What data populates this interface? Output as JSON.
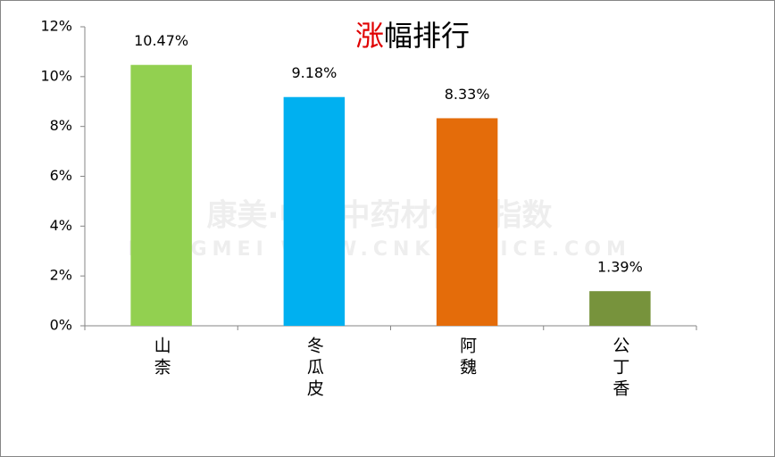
{
  "chart_data": {
    "type": "bar",
    "title": [
      {
        "text": "涨",
        "color": "#e00000"
      },
      {
        "text": "幅排行",
        "color": "#000000"
      }
    ],
    "categories": [
      "山柰",
      "冬瓜皮",
      "阿魏",
      "公丁香"
    ],
    "values": [
      10.47,
      9.18,
      8.33,
      1.39
    ],
    "value_labels": [
      "10.47%",
      "9.18%",
      "8.33%",
      "1.39%"
    ],
    "colors": [
      "#92d050",
      "#00b0f0",
      "#e46c0a",
      "#77933c"
    ],
    "ylim": [
      0,
      12
    ],
    "yticks": [
      {
        "value": 0,
        "label": "0%"
      },
      {
        "value": 2,
        "label": "2%"
      },
      {
        "value": 4,
        "label": "4%"
      },
      {
        "value": 6,
        "label": "6%"
      },
      {
        "value": 8,
        "label": "8%"
      },
      {
        "value": 10,
        "label": "10%"
      },
      {
        "value": 12,
        "label": "12%"
      }
    ],
    "grid": false,
    "watermark": [
      "康美·中国中药材价格指数",
      "KANGMEI  WWW.CNKMPRICE.COM"
    ]
  }
}
